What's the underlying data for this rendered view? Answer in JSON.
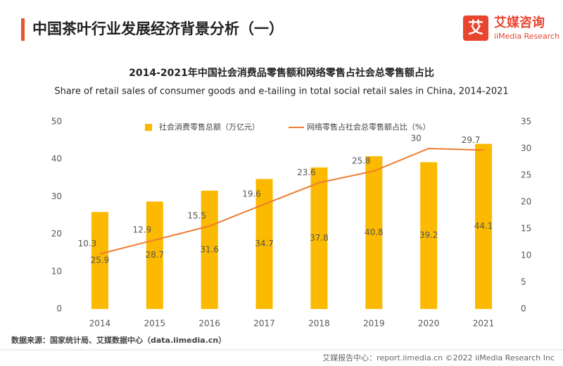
{
  "header": {
    "title": "中国茶叶行业发展经济背景分析（一）",
    "logo_icon": "艾",
    "logo_name": "艾媒咨询",
    "logo_sub": "iiMedia Research"
  },
  "chart_data": {
    "type": "bar",
    "title": "2014-2021年中国社会消费品零售额和网络零售占社会总零售额占比",
    "subtitle": "Share of retail sales of consumer goods and e-tailing in total social retail sales in China, 2014-2021",
    "categories": [
      "2014",
      "2015",
      "2016",
      "2017",
      "2018",
      "2019",
      "2020",
      "2021"
    ],
    "series": [
      {
        "name": "社会消费零售总额（万亿元）",
        "color": "#FBB900",
        "values": [
          25.9,
          28.7,
          31.6,
          34.7,
          37.8,
          40.8,
          39.2,
          44.1
        ]
      },
      {
        "name": "网络零售占社会总零售额占比（%）",
        "type": "line",
        "axis": "y2",
        "color": "#ED7D31",
        "values": [
          10.3,
          12.9,
          15.5,
          19.6,
          23.6,
          25.8,
          30,
          29.7
        ]
      }
    ],
    "ylim": [
      0,
      50
    ],
    "yticks": [
      0,
      10,
      20,
      30,
      40,
      50
    ],
    "y2lim": [
      0,
      35
    ],
    "y2ticks": [
      0,
      5,
      10,
      15,
      20,
      25,
      30,
      35
    ],
    "grid": false,
    "legend": "top"
  },
  "source": "数据来源：国家统计局、艾媒数据中心（data.iimedia.cn）",
  "footer": "艾媒报告中心：report.iimedia.cn  ©2022  iiMedia Research  Inc"
}
